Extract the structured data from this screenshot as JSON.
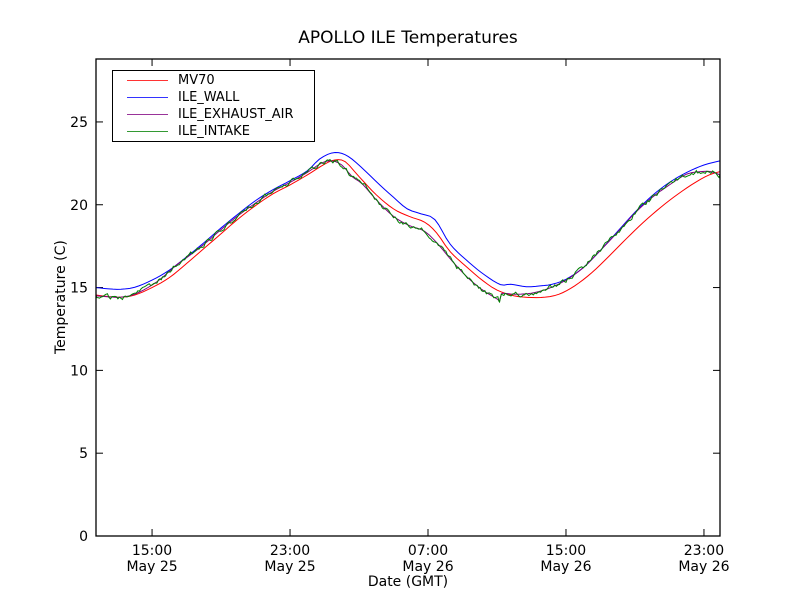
{
  "figure": {
    "title": "APOLLO ILE Temperatures"
  },
  "chart_data": {
    "type": "line",
    "title": "APOLLO ILE Temperatures",
    "xlabel": "Date (GMT)",
    "ylabel": "Temperature (C)",
    "x_unit": "hours since May 25 00:00 GMT",
    "xlim": [
      11.75,
      47.93
    ],
    "ylim": [
      0,
      28.8
    ],
    "grid": false,
    "legend_position": "upper left",
    "frame_color": "#000000",
    "yticks": [
      {
        "value": 0,
        "label": "0"
      },
      {
        "value": 5,
        "label": "5"
      },
      {
        "value": 10,
        "label": "10"
      },
      {
        "value": 15,
        "label": "15"
      },
      {
        "value": 20,
        "label": "20"
      },
      {
        "value": 25,
        "label": "25"
      }
    ],
    "xticks": [
      {
        "value": 15,
        "time": "15:00",
        "date": "May 25"
      },
      {
        "value": 23,
        "time": "23:00",
        "date": "May 25"
      },
      {
        "value": 31,
        "time": "07:00",
        "date": "May 26"
      },
      {
        "value": 39,
        "time": "15:00",
        "date": "May 26"
      },
      {
        "value": 47,
        "time": "23:00",
        "date": "May 26"
      }
    ],
    "series": [
      {
        "name": "MV70",
        "color": "#ff0000",
        "noise_amplitude": 0,
        "x": [
          11.75,
          12.5,
          13.2,
          14,
          15,
          16,
          17,
          18,
          19,
          20,
          21,
          22,
          23,
          24,
          25,
          25.6,
          26.2,
          27,
          28,
          29,
          29.9,
          30.8,
          31.5,
          32.3,
          33.4,
          34.2,
          35,
          36,
          37,
          37.8,
          38.6,
          39.5,
          40.5,
          41.5,
          42.5,
          43.5,
          44.5,
          45.5,
          46.5,
          47.3,
          47.93
        ],
        "y": [
          14.55,
          14.45,
          14.42,
          14.55,
          15.0,
          15.6,
          16.45,
          17.35,
          18.25,
          19.15,
          19.95,
          20.65,
          21.2,
          21.8,
          22.45,
          22.7,
          22.6,
          21.7,
          20.6,
          19.75,
          19.3,
          18.95,
          18.3,
          17.15,
          16.1,
          15.4,
          14.85,
          14.5,
          14.4,
          14.42,
          14.6,
          15.1,
          15.9,
          16.9,
          17.95,
          18.95,
          19.85,
          20.65,
          21.35,
          21.8,
          22.0
        ]
      },
      {
        "name": "ILE_WALL",
        "color": "#0000ff",
        "noise_amplitude": 0,
        "x": [
          11.75,
          12.5,
          13.2,
          14,
          15,
          16,
          17,
          18,
          19,
          20,
          21,
          22,
          23,
          24,
          24.7,
          25.4,
          26,
          26.6,
          27.4,
          28.2,
          29,
          29.8,
          30.6,
          31.4,
          32.3,
          33.4,
          34.3,
          35.2,
          35.8,
          36.7,
          37.5,
          38.2,
          39,
          40,
          41,
          42,
          43,
          44,
          45,
          46,
          47,
          47.93
        ],
        "y": [
          15.0,
          14.92,
          14.9,
          15.02,
          15.45,
          16.05,
          16.85,
          17.7,
          18.6,
          19.45,
          20.25,
          20.9,
          21.45,
          22.05,
          22.75,
          23.12,
          23.1,
          22.75,
          22.0,
          21.2,
          20.45,
          19.75,
          19.45,
          19.1,
          17.6,
          16.5,
          15.75,
          15.18,
          15.2,
          15.05,
          15.1,
          15.2,
          15.5,
          16.2,
          17.25,
          18.4,
          19.55,
          20.55,
          21.35,
          21.95,
          22.4,
          22.65
        ]
      },
      {
        "name": "ILE_EXHAUST_AIR",
        "color": "#800080",
        "noise_amplitude": 0,
        "x": [
          11.75,
          12.5,
          13.2,
          14,
          15,
          15.7,
          16.4,
          17,
          18,
          19,
          20,
          21,
          22,
          23,
          24,
          24.8,
          25.4,
          26,
          26.6,
          27.2,
          28,
          29,
          29.9,
          30.8,
          31.6,
          32.4,
          33.3,
          34.1,
          34.7,
          35.05,
          35.15,
          35.25,
          35.4,
          36,
          36.6,
          37.2,
          38,
          39,
          40,
          41,
          42,
          43,
          44,
          45,
          46,
          46.8,
          47.4,
          47.93
        ],
        "y": [
          14.5,
          14.44,
          14.42,
          14.6,
          15.15,
          15.7,
          16.35,
          16.8,
          17.6,
          18.5,
          19.35,
          20.1,
          20.8,
          21.35,
          21.95,
          22.5,
          22.65,
          22.4,
          21.7,
          21.25,
          20.3,
          19.3,
          18.75,
          18.4,
          17.6,
          16.6,
          15.6,
          14.9,
          14.5,
          14.28,
          14.2,
          14.6,
          14.65,
          14.6,
          14.62,
          14.7,
          14.95,
          15.45,
          16.2,
          17.25,
          18.35,
          19.5,
          20.45,
          21.2,
          21.85,
          22.0,
          22.0,
          21.8
        ]
      },
      {
        "name": "ILE_INTAKE",
        "color": "#008000",
        "noise_amplitude": 0.09,
        "x": [
          11.75,
          12.5,
          13.2,
          14,
          15,
          15.7,
          16.4,
          17,
          18,
          19,
          20,
          21,
          22,
          23,
          24,
          24.8,
          25.4,
          26,
          26.6,
          27.2,
          28,
          29,
          29.9,
          30.8,
          31.6,
          32.4,
          33.3,
          34.1,
          34.7,
          35.05,
          35.15,
          35.25,
          35.4,
          36,
          36.6,
          37.2,
          38,
          39,
          40,
          41,
          42,
          43,
          44,
          45,
          46,
          46.8,
          47.4,
          47.93
        ],
        "y": [
          14.5,
          14.44,
          14.42,
          14.6,
          15.15,
          15.7,
          16.35,
          16.8,
          17.6,
          18.5,
          19.35,
          20.1,
          20.8,
          21.35,
          21.95,
          22.5,
          22.65,
          22.4,
          21.7,
          21.25,
          20.3,
          19.3,
          18.75,
          18.4,
          17.6,
          16.6,
          15.6,
          14.9,
          14.5,
          14.28,
          14.2,
          14.6,
          14.65,
          14.6,
          14.62,
          14.7,
          14.95,
          15.45,
          16.2,
          17.25,
          18.35,
          19.5,
          20.45,
          21.2,
          21.85,
          22.0,
          22.0,
          21.8
        ]
      }
    ]
  }
}
